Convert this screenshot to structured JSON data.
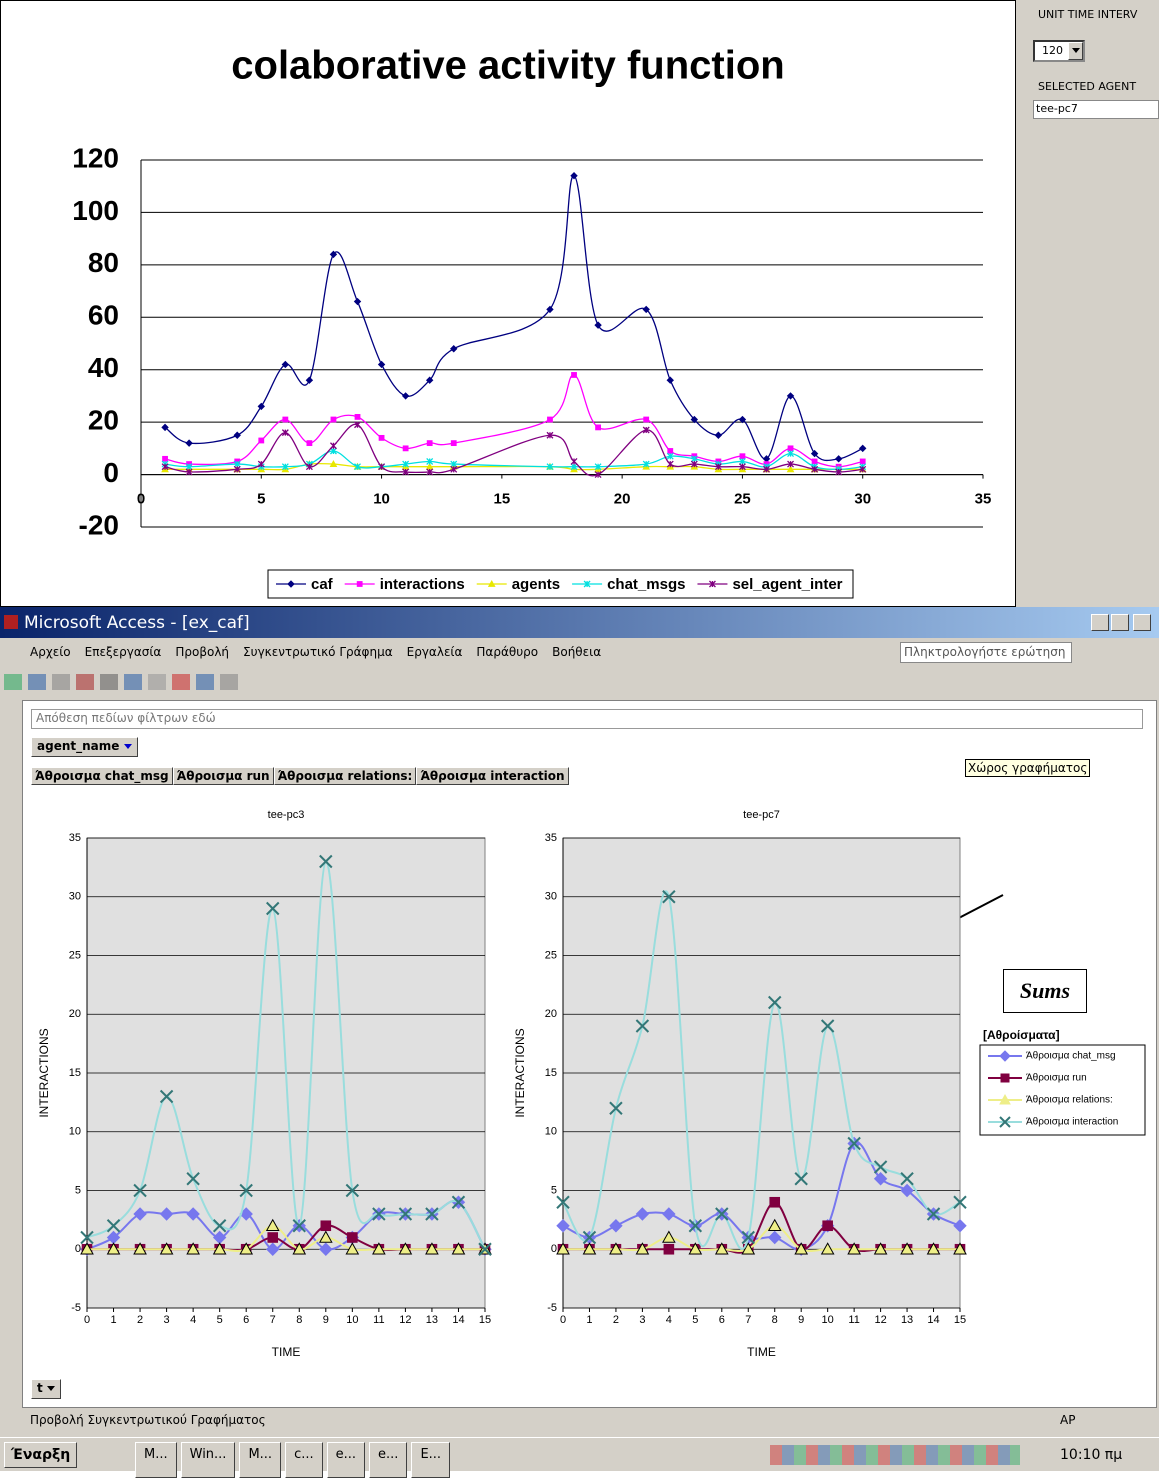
{
  "chart_data": [
    {
      "type": "line",
      "title": "colaborative activity function",
      "smooth": true,
      "grid": true,
      "legend": "bottom",
      "x": [
        1,
        2,
        4,
        5,
        6,
        7,
        8,
        9,
        10,
        11,
        12,
        13,
        17,
        18,
        19,
        21,
        22,
        23,
        24,
        25,
        26,
        27,
        28,
        29,
        30
      ],
      "xlim": [
        0,
        35
      ],
      "xticks": [
        0,
        5,
        10,
        15,
        20,
        25,
        30,
        35
      ],
      "ylim": [
        -20,
        120
      ],
      "yticks": [
        -20,
        0,
        20,
        40,
        60,
        80,
        100,
        120
      ],
      "series": [
        {
          "name": "caf",
          "color": "#000080",
          "marker": "diamond",
          "values": [
            18,
            12,
            15,
            26,
            42,
            36,
            84,
            66,
            42,
            30,
            36,
            48,
            63,
            114,
            57,
            63,
            36,
            21,
            15,
            21,
            6,
            30,
            8,
            6,
            10
          ]
        },
        {
          "name": "interactions",
          "color": "#ff00ff",
          "marker": "square",
          "values": [
            6,
            4,
            5,
            13,
            21,
            12,
            21,
            22,
            14,
            10,
            12,
            12,
            21,
            38,
            18,
            21,
            9,
            7,
            5,
            7,
            4,
            10,
            5,
            3,
            5
          ]
        },
        {
          "name": "agents",
          "color": "#e8e800",
          "marker": "triangle",
          "values": [
            2,
            2,
            2,
            2,
            2,
            4,
            4,
            3,
            3,
            3,
            3,
            3,
            3,
            2,
            2,
            3,
            3,
            3,
            2,
            2,
            2,
            2,
            2,
            2,
            2
          ]
        },
        {
          "name": "chat_msgs",
          "color": "#00e0e0",
          "marker": "star",
          "values": [
            4,
            3,
            4,
            3,
            3,
            4,
            9,
            3,
            3,
            4,
            5,
            4,
            3,
            3,
            3,
            4,
            7,
            6,
            4,
            5,
            3,
            8,
            3,
            2,
            3
          ]
        },
        {
          "name": "sel_agent_inter",
          "color": "#800080",
          "marker": "star",
          "values": [
            3,
            1,
            2,
            4,
            16,
            3,
            11,
            19,
            3,
            1,
            1,
            2,
            15,
            5,
            0,
            17,
            4,
            4,
            3,
            3,
            2,
            4,
            2,
            1,
            2
          ]
        }
      ]
    },
    {
      "type": "line",
      "title": "tee-pc3",
      "x_label": "TIME",
      "y_label": "INTERACTIONS",
      "smooth": true,
      "grid": true,
      "legend": "right",
      "legend_title": "[Αθροίσματα]",
      "x": [
        0,
        1,
        2,
        3,
        4,
        5,
        6,
        7,
        8,
        9,
        10,
        11,
        12,
        13,
        14,
        15
      ],
      "xlim": [
        0,
        15
      ],
      "xticks": [
        0,
        1,
        2,
        3,
        4,
        5,
        6,
        7,
        8,
        9,
        10,
        11,
        12,
        13,
        14,
        15
      ],
      "ylim": [
        -5,
        35
      ],
      "yticks": [
        -5,
        0,
        5,
        10,
        15,
        20,
        25,
        30,
        35
      ],
      "series": [
        {
          "name": "Άθροισμα chat_msg",
          "color": "#7777ee",
          "marker": "diamond",
          "values": [
            0,
            1,
            3,
            3,
            3,
            1,
            3,
            0,
            2,
            0,
            1,
            3,
            3,
            3,
            4,
            0
          ]
        },
        {
          "name": "Άθροισμα run",
          "color": "#800040",
          "marker": "square",
          "values": [
            0,
            0,
            0,
            0,
            0,
            0,
            0,
            1,
            0,
            2,
            1,
            0,
            0,
            0,
            0,
            0
          ]
        },
        {
          "name": "Άθροισμα relations:",
          "color": "#eeee88",
          "marker": "triangle",
          "values": [
            0,
            0,
            0,
            0,
            0,
            0,
            0,
            2,
            0,
            1,
            0,
            0,
            0,
            0,
            0,
            0
          ]
        },
        {
          "name": "Άθροισμα interaction",
          "color": "#99dddd",
          "marker": "x",
          "values": [
            1,
            2,
            5,
            13,
            6,
            2,
            5,
            29,
            2,
            33,
            5,
            3,
            3,
            3,
            4,
            0
          ]
        }
      ]
    },
    {
      "type": "line",
      "title": "tee-pc7",
      "x_label": "TIME",
      "y_label": "INTERACTIONS",
      "smooth": true,
      "grid": true,
      "x": [
        0,
        1,
        2,
        3,
        4,
        5,
        6,
        7,
        8,
        9,
        10,
        11,
        12,
        13,
        14,
        15
      ],
      "xlim": [
        0,
        15
      ],
      "xticks": [
        0,
        1,
        2,
        3,
        4,
        5,
        6,
        7,
        8,
        9,
        10,
        11,
        12,
        13,
        14,
        15
      ],
      "ylim": [
        -5,
        35
      ],
      "yticks": [
        -5,
        0,
        5,
        10,
        15,
        20,
        25,
        30,
        35
      ],
      "series": [
        {
          "color": "#7777ee",
          "marker": "diamond",
          "values": [
            2,
            1,
            2,
            3,
            3,
            2,
            3,
            1,
            1,
            0,
            2,
            9,
            6,
            5,
            3,
            2
          ]
        },
        {
          "color": "#800040",
          "marker": "square",
          "values": [
            0,
            0,
            0,
            0,
            0,
            0,
            0,
            0,
            4,
            0,
            2,
            0,
            0,
            0,
            0,
            0
          ]
        },
        {
          "color": "#eeee88",
          "marker": "triangle",
          "values": [
            0,
            0,
            0,
            0,
            1,
            0,
            0,
            0,
            2,
            0,
            0,
            0,
            0,
            0,
            0,
            0
          ]
        },
        {
          "color": "#99dddd",
          "marker": "x",
          "values": [
            4,
            1,
            12,
            19,
            30,
            2,
            3,
            1,
            21,
            6,
            19,
            9,
            7,
            6,
            3,
            4
          ]
        }
      ]
    }
  ],
  "panel": {
    "unit_label": "UNIT TIME INTERV",
    "unit_value": 120,
    "agent_label": "SELECTED AGENT",
    "agent_value": "tee-pc7"
  },
  "window": {
    "title": "Microsoft Access - [ex_caf]",
    "menu": [
      "Αρχείο",
      "Επεξεργασία",
      "Προβολή",
      "Συγκεντρωτικό Γράφημα",
      "Εργαλεία",
      "Παράθυρο",
      "Βοήθεια"
    ],
    "question": "Πληκτρολογήστε ερώτηση",
    "filter": "Απόθεση πεδίων φίλτρων εδώ",
    "series_field": "agent_name",
    "data_fields": [
      "Άθροισμα chat_msg",
      "Άθροισμα run",
      "Άθροισμα relations:",
      "Άθροισμα interaction"
    ],
    "tooltip": "Χώρος γραφήματος",
    "annotation": "Sums",
    "category_field": "t",
    "status": "Προβολή Συγκεντρωτικού Γραφήματος",
    "status_right": "ΑΡ"
  },
  "taskbar": {
    "start": "Έναρξη",
    "items": [
      "M...",
      "Win...",
      "M...",
      "c...",
      "e...",
      "e...",
      "E..."
    ],
    "clock": "10:10 πμ"
  }
}
